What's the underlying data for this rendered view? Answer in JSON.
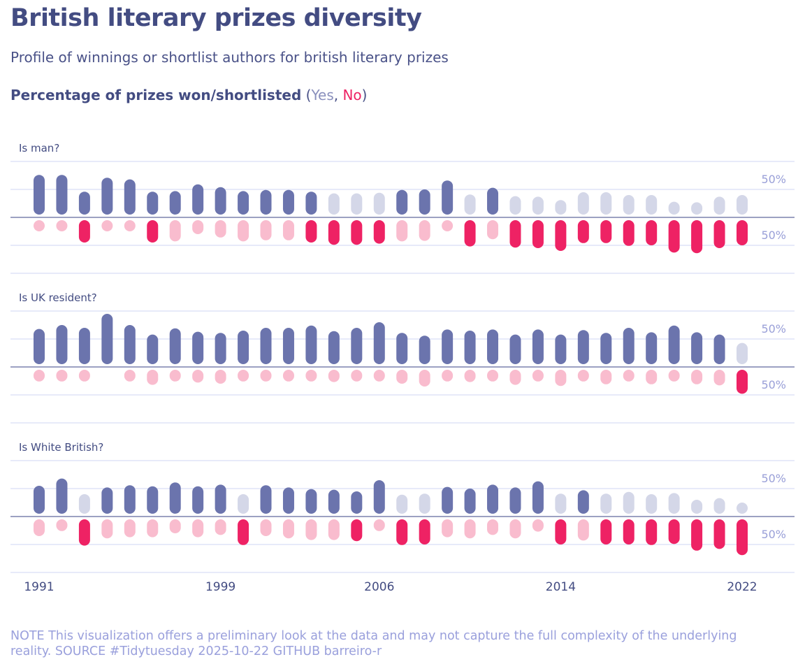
{
  "title": "British literary prizes diversity",
  "subtitle": "Profile of winnings or shortlist authors for british literary prizes",
  "legend": {
    "prefix": "Percentage of prizes won/shortlisted",
    "open": " (",
    "yes": "Yes",
    "sep": ", ",
    "no": "No",
    "close": ")"
  },
  "colors": {
    "yes_major": "#6b74ad",
    "yes_minor": "#d4d7e8",
    "no_major": "#ee2264",
    "no_minor": "#f9bcce",
    "grid": "#cfd5f3",
    "baseline": "#7b82ad",
    "label": "#9aa0d8",
    "text": "#434c82"
  },
  "footer": {
    "line1": "NOTE This visualization offers a preliminary look at the data and may not capture the full complexity of the underlying",
    "line2": "reality. SOURCE #Tidytuesday 2025-10-22 GITHUB barreiro-r"
  },
  "chart_data": {
    "type": "bar",
    "title": "Percentage of prizes won/shortlisted (Yes, No)",
    "xlabel": "",
    "ylabel": "",
    "ylim": [
      -100,
      100
    ],
    "reference_label": "50%",
    "x_ticks": [
      "1991",
      "1999",
      "2006",
      "2014",
      "2022"
    ],
    "years": [
      1991,
      1992,
      1993,
      1994,
      1995,
      1996,
      1997,
      1998,
      1999,
      2000,
      2001,
      2002,
      2003,
      2004,
      2005,
      2006,
      2007,
      2008,
      2009,
      2010,
      2011,
      2012,
      2013,
      2014,
      2015,
      2016,
      2017,
      2018,
      2019,
      2020,
      2021,
      2022
    ],
    "panels": [
      {
        "label": "Is man?",
        "yes": [
          76,
          76,
          46,
          71,
          68,
          46,
          47,
          59,
          54,
          47,
          49,
          49,
          46,
          43,
          43,
          44,
          49,
          50,
          66,
          41,
          53,
          38,
          37,
          31,
          45,
          45,
          40,
          40,
          28,
          27,
          37,
          40
        ],
        "no": [
          25,
          25,
          45,
          25,
          25,
          45,
          43,
          30,
          36,
          43,
          41,
          41,
          45,
          49,
          49,
          47,
          43,
          42,
          25,
          52,
          39,
          54,
          55,
          60,
          46,
          46,
          51,
          50,
          63,
          64,
          55,
          50
        ],
        "yes_highlight": [
          1,
          1,
          1,
          1,
          1,
          1,
          1,
          1,
          1,
          1,
          1,
          1,
          1,
          0,
          0,
          0,
          1,
          1,
          1,
          0,
          1,
          0,
          0,
          0,
          0,
          0,
          0,
          0,
          0,
          0,
          0,
          0
        ],
        "no_highlight": [
          0,
          0,
          1,
          0,
          0,
          1,
          0,
          0,
          0,
          0,
          0,
          0,
          1,
          1,
          1,
          1,
          0,
          0,
          0,
          1,
          0,
          1,
          1,
          1,
          1,
          1,
          1,
          1,
          1,
          1,
          1,
          1
        ]
      },
      {
        "label": "Is UK resident?",
        "yes": [
          68,
          75,
          70,
          95,
          75,
          58,
          69,
          63,
          61,
          65,
          70,
          70,
          74,
          64,
          70,
          80,
          61,
          56,
          67,
          65,
          67,
          58,
          67,
          58,
          66,
          61,
          70,
          62,
          74,
          62,
          58,
          43
        ],
        "no": [
          26,
          26,
          26,
          0,
          26,
          32,
          26,
          28,
          30,
          26,
          26,
          26,
          26,
          27,
          26,
          26,
          30,
          35,
          26,
          27,
          26,
          32,
          26,
          34,
          26,
          31,
          26,
          31,
          26,
          31,
          33,
          48
        ],
        "yes_highlight": [
          1,
          1,
          1,
          1,
          1,
          1,
          1,
          1,
          1,
          1,
          1,
          1,
          1,
          1,
          1,
          1,
          1,
          1,
          1,
          1,
          1,
          1,
          1,
          1,
          1,
          1,
          1,
          1,
          1,
          1,
          1,
          0
        ],
        "no_highlight": [
          0,
          0,
          0,
          0,
          0,
          0,
          0,
          0,
          0,
          0,
          0,
          0,
          0,
          0,
          0,
          0,
          0,
          0,
          0,
          0,
          0,
          0,
          0,
          0,
          0,
          0,
          0,
          0,
          0,
          0,
          0,
          1
        ]
      },
      {
        "label": "Is White British?",
        "yes": [
          55,
          68,
          40,
          52,
          56,
          54,
          61,
          54,
          57,
          40,
          56,
          52,
          49,
          48,
          45,
          65,
          39,
          41,
          53,
          50,
          57,
          52,
          63,
          41,
          47,
          41,
          44,
          40,
          42,
          30,
          33,
          25
        ],
        "no": [
          35,
          26,
          52,
          39,
          37,
          37,
          30,
          37,
          33,
          51,
          35,
          39,
          42,
          42,
          44,
          26,
          51,
          50,
          37,
          39,
          33,
          39,
          27,
          50,
          43,
          50,
          50,
          51,
          49,
          61,
          58,
          69
        ],
        "yes_highlight": [
          1,
          1,
          0,
          1,
          1,
          1,
          1,
          1,
          1,
          0,
          1,
          1,
          1,
          1,
          1,
          1,
          0,
          0,
          1,
          1,
          1,
          1,
          1,
          0,
          1,
          0,
          0,
          0,
          0,
          0,
          0,
          0
        ],
        "no_highlight": [
          0,
          0,
          1,
          0,
          0,
          0,
          0,
          0,
          0,
          1,
          0,
          0,
          0,
          0,
          1,
          0,
          1,
          1,
          0,
          0,
          0,
          0,
          0,
          1,
          0,
          1,
          1,
          1,
          1,
          1,
          1,
          1
        ]
      }
    ]
  }
}
